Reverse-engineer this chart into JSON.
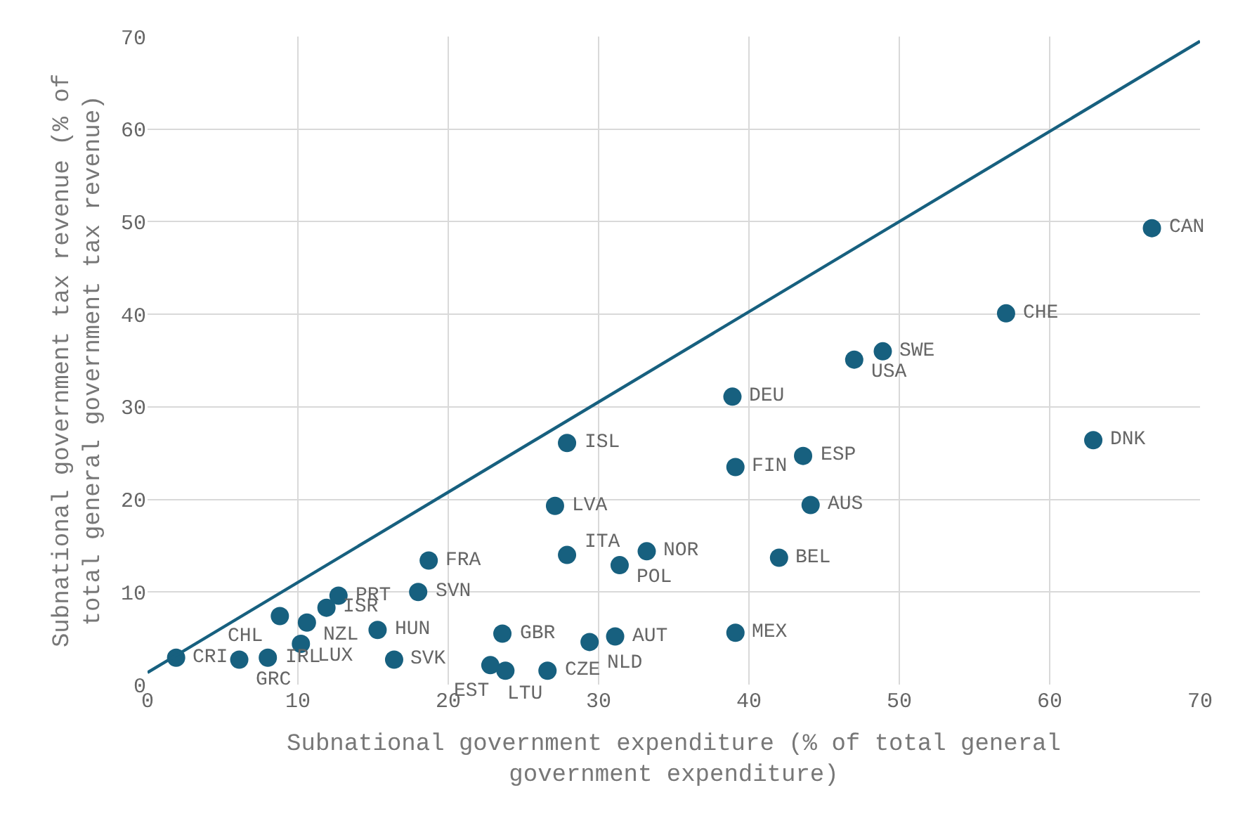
{
  "chart_data": {
    "type": "scatter",
    "xlabel": "Subnational government expenditure (% of total general government expenditure)",
    "ylabel": "Subnational government tax revenue (% of total general government tax revenue)",
    "xlim": [
      0,
      70
    ],
    "ylim": [
      0,
      70
    ],
    "xticks": [
      0,
      10,
      20,
      30,
      40,
      50,
      60,
      70
    ],
    "yticks": [
      0,
      10,
      20,
      30,
      40,
      50,
      60,
      70
    ],
    "grid": true,
    "legend": false,
    "series": [
      {
        "marker": "circle",
        "color": "#17607f",
        "x": [
          66.8,
          57.1,
          48.9,
          47.0,
          38.9,
          62.9,
          27.9,
          43.6,
          39.1,
          27.1,
          44.1,
          27.9,
          33.2,
          31.4,
          42.0,
          18.7,
          18.0,
          12.7,
          11.9,
          8.8,
          10.6,
          10.2,
          1.9,
          6.1,
          8.0,
          15.3,
          16.4,
          23.6,
          22.8,
          23.8,
          26.6,
          29.4,
          31.1,
          39.1
        ],
        "values": [
          49.3,
          40.1,
          36.0,
          35.1,
          31.1,
          26.4,
          26.1,
          24.7,
          23.5,
          19.3,
          19.4,
          14.0,
          14.4,
          12.9,
          13.7,
          13.4,
          10.0,
          9.6,
          8.3,
          7.4,
          6.7,
          4.4,
          2.9,
          2.7,
          2.9,
          5.9,
          2.7,
          5.5,
          2.1,
          1.5,
          1.5,
          4.6,
          5.2,
          5.6
        ]
      },
      {
        "type": "line",
        "color": "#17607f",
        "line_style": "solid",
        "x": [
          0,
          70
        ],
        "values": [
          1.3,
          69.5
        ]
      }
    ],
    "annotations": [
      {
        "text": "CAN",
        "x": 66.8,
        "y": 49.3
      },
      {
        "text": "CHE",
        "x": 57.1,
        "y": 40.1
      },
      {
        "text": "SWE",
        "x": 48.9,
        "y": 36.0
      },
      {
        "text": "USA",
        "x": 47.0,
        "y": 35.1
      },
      {
        "text": "DEU",
        "x": 38.9,
        "y": 31.1
      },
      {
        "text": "DNK",
        "x": 62.9,
        "y": 26.4
      },
      {
        "text": "ISL",
        "x": 27.9,
        "y": 26.1
      },
      {
        "text": "ESP",
        "x": 43.6,
        "y": 24.7
      },
      {
        "text": "FIN",
        "x": 39.1,
        "y": 23.5
      },
      {
        "text": "LVA",
        "x": 27.1,
        "y": 19.3
      },
      {
        "text": "AUS",
        "x": 44.1,
        "y": 19.4
      },
      {
        "text": "ITA",
        "x": 27.9,
        "y": 14.0
      },
      {
        "text": "NOR",
        "x": 33.2,
        "y": 14.4
      },
      {
        "text": "POL",
        "x": 31.4,
        "y": 12.9
      },
      {
        "text": "BEL",
        "x": 42.0,
        "y": 13.7
      },
      {
        "text": "FRA",
        "x": 18.7,
        "y": 13.4
      },
      {
        "text": "SVN",
        "x": 18.0,
        "y": 10.0
      },
      {
        "text": "PRT",
        "x": 12.7,
        "y": 9.6
      },
      {
        "text": "ISR",
        "x": 11.9,
        "y": 8.3
      },
      {
        "text": "CHL",
        "x": 8.8,
        "y": 7.4
      },
      {
        "text": "NZL",
        "x": 10.6,
        "y": 6.7
      },
      {
        "text": "LUX",
        "x": 10.2,
        "y": 4.4
      },
      {
        "text": "CRI",
        "x": 1.9,
        "y": 2.9
      },
      {
        "text": "GRC",
        "x": 6.1,
        "y": 2.7
      },
      {
        "text": "IRL",
        "x": 8.0,
        "y": 2.9
      },
      {
        "text": "HUN",
        "x": 15.3,
        "y": 5.9
      },
      {
        "text": "SVK",
        "x": 16.4,
        "y": 2.7
      },
      {
        "text": "GBR",
        "x": 23.6,
        "y": 5.5
      },
      {
        "text": "LTU",
        "x": 22.8,
        "y": 2.1
      },
      {
        "text": "EST",
        "x": 23.8,
        "y": 1.5
      },
      {
        "text": "CZE",
        "x": 26.6,
        "y": 1.5
      },
      {
        "text": "NLD",
        "x": 29.4,
        "y": 4.6
      },
      {
        "text": "AUT",
        "x": 31.1,
        "y": 5.2
      },
      {
        "text": "MEX",
        "x": 39.1,
        "y": 5.6
      }
    ]
  }
}
